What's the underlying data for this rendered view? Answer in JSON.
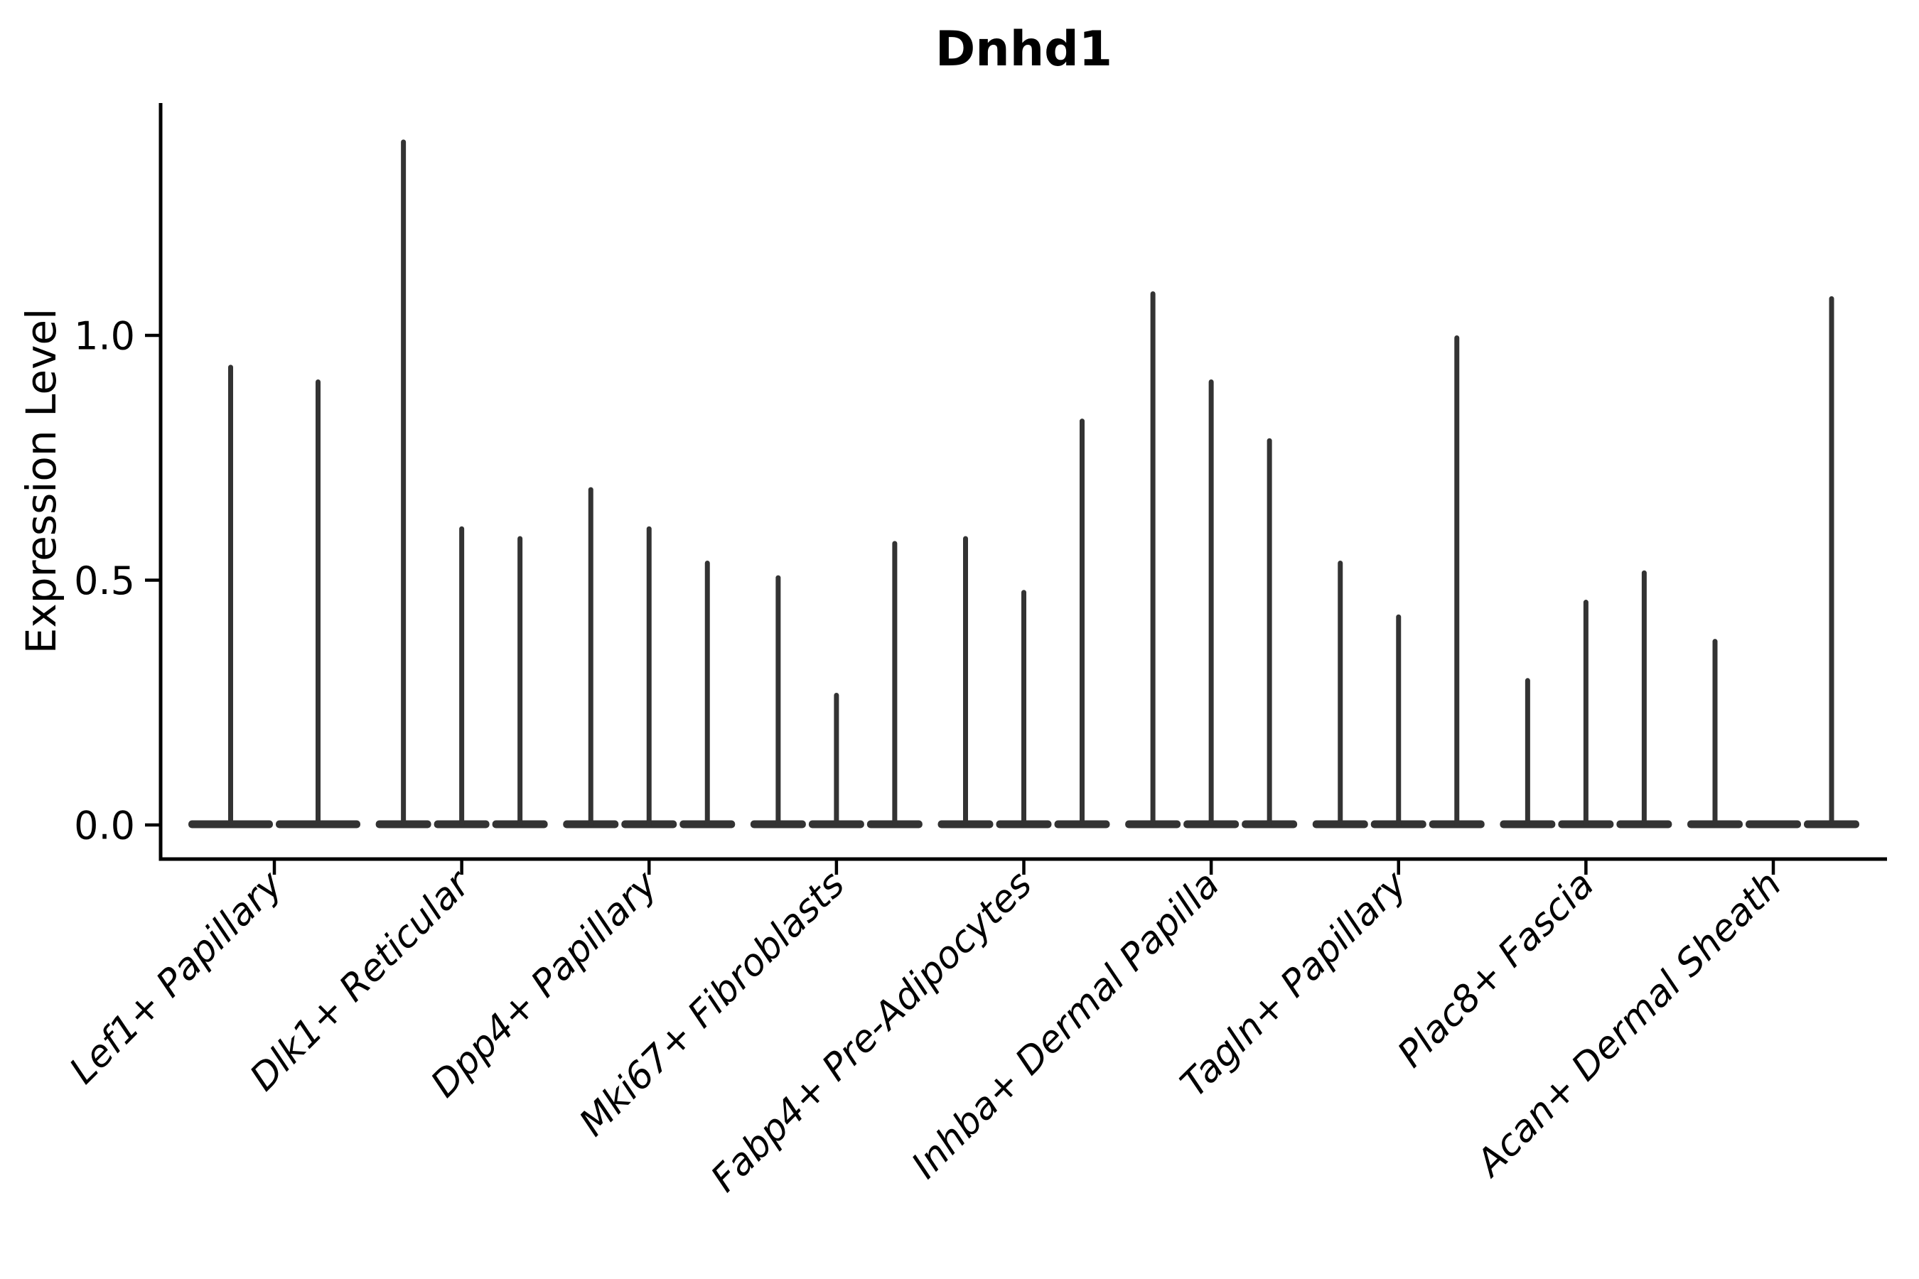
{
  "chart_data": {
    "type": "violin",
    "title": "Dnhd1",
    "ylabel": "Expression Level",
    "xlabel": "",
    "yticks": [
      0.0,
      0.5,
      1.0
    ],
    "ylim": [
      -0.07,
      1.475
    ],
    "grid": false,
    "legend": "none",
    "violin_color": "#333333",
    "axis_color": "#000000",
    "categories": [
      {
        "label": "Lef1+ Papillary",
        "violin_maxima": [
          0.94,
          0.91
        ]
      },
      {
        "label": "Dlk1+ Reticular",
        "violin_maxima": [
          1.4,
          0.61,
          0.59
        ]
      },
      {
        "label": "Dpp4+ Papillary",
        "violin_maxima": [
          0.69,
          0.61,
          0.54
        ]
      },
      {
        "label": "Mki67+ Fibroblasts",
        "violin_maxima": [
          0.51,
          0.27,
          0.58
        ]
      },
      {
        "label": "Fabp4+ Pre-Adipocytes",
        "violin_maxima": [
          0.59,
          0.48,
          0.83
        ]
      },
      {
        "label": "Inhba+ Dermal Papilla",
        "violin_maxima": [
          1.09,
          0.91,
          0.79
        ]
      },
      {
        "label": "Tagln+ Papillary",
        "violin_maxima": [
          0.54,
          0.43,
          1.0
        ]
      },
      {
        "label": "Plac8+ Fascia",
        "violin_maxima": [
          0.3,
          0.46,
          0.52
        ]
      },
      {
        "label": "Acan+ Dermal Sheath",
        "violin_maxima": [
          0.38,
          null,
          1.08
        ]
      }
    ]
  }
}
